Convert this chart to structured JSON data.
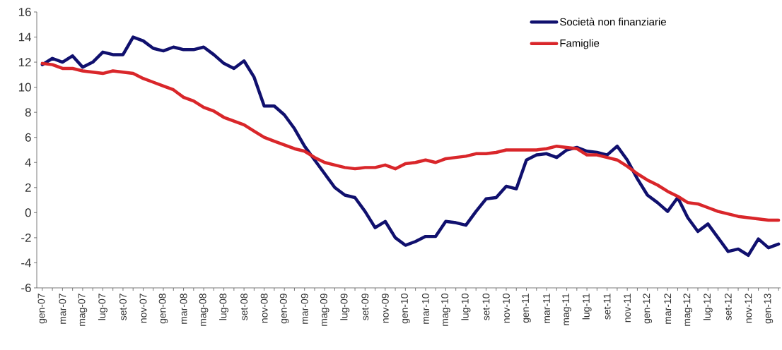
{
  "chart_data": {
    "type": "line",
    "categories": [
      "gen-07",
      null,
      "mar-07",
      null,
      "mag-07",
      null,
      "lug-07",
      null,
      "set-07",
      null,
      "nov-07",
      null,
      "gen-08",
      null,
      "mar-08",
      null,
      "mag-08",
      null,
      "lug-08",
      null,
      "set-08",
      null,
      "nov-08",
      null,
      "gen-09",
      null,
      "mar-09",
      null,
      "mag-09",
      null,
      "lug-09",
      null,
      "set-09",
      null,
      "nov-09",
      null,
      "gen-10",
      null,
      "mar-10",
      null,
      "mag-10",
      null,
      "lug-10",
      null,
      "set-10",
      null,
      "nov-10",
      null,
      "gen-11",
      null,
      "mar-11",
      null,
      "mag-11",
      null,
      "lug-11",
      null,
      "set-11",
      null,
      "nov-11",
      null,
      "gen-12",
      null,
      "mar-12",
      null,
      "mag-12",
      null,
      "lug-12",
      null,
      "set-12",
      null,
      "nov-12",
      null,
      "gen-13",
      null
    ],
    "series": [
      {
        "name": "Società non finanziarie",
        "color": "#10106e",
        "values": [
          11.8,
          12.3,
          12.0,
          12.5,
          11.6,
          12.0,
          12.8,
          12.6,
          12.6,
          14.0,
          13.7,
          13.1,
          12.9,
          13.2,
          13.0,
          13.0,
          13.2,
          12.6,
          11.9,
          11.5,
          12.1,
          10.8,
          8.5,
          8.5,
          7.8,
          6.7,
          5.3,
          4.2,
          3.1,
          2.0,
          1.4,
          1.2,
          0.1,
          -1.2,
          -0.7,
          -2.0,
          -2.6,
          -2.3,
          -1.9,
          -1.9,
          -0.7,
          -0.8,
          -1.0,
          0.1,
          1.1,
          1.2,
          2.1,
          1.9,
          4.2,
          4.6,
          4.7,
          4.4,
          5.0,
          5.2,
          4.9,
          4.8,
          4.6,
          5.3,
          4.2,
          2.7,
          1.4,
          0.8,
          0.1,
          1.2,
          -0.4,
          -1.5,
          -0.9,
          -2.0,
          -3.1,
          -2.9,
          -3.4,
          -2.1,
          -2.8,
          -2.5
        ]
      },
      {
        "name": "Famiglie",
        "color": "#d9262a",
        "values": [
          11.9,
          11.8,
          11.5,
          11.5,
          11.3,
          11.2,
          11.1,
          11.3,
          11.2,
          11.1,
          10.7,
          10.4,
          10.1,
          9.8,
          9.2,
          8.9,
          8.4,
          8.1,
          7.6,
          7.3,
          7.0,
          6.5,
          6.0,
          5.7,
          5.4,
          5.1,
          4.9,
          4.4,
          4.0,
          3.8,
          3.6,
          3.5,
          3.6,
          3.6,
          3.8,
          3.5,
          3.9,
          4.0,
          4.2,
          4.0,
          4.3,
          4.4,
          4.5,
          4.7,
          4.7,
          4.8,
          5.0,
          5.0,
          5.0,
          5.0,
          5.1,
          5.3,
          5.2,
          5.1,
          4.6,
          4.6,
          4.4,
          4.2,
          3.7,
          3.1,
          2.6,
          2.2,
          1.7,
          1.3,
          0.8,
          0.7,
          0.4,
          0.1,
          -0.1,
          -0.3,
          -0.4,
          -0.5,
          -0.6,
          -0.6
        ]
      }
    ],
    "ylim": [
      -6,
      16
    ],
    "yticks": [
      -6,
      -4,
      -2,
      0,
      2,
      4,
      6,
      8,
      10,
      12,
      14,
      16
    ],
    "legend": "top right",
    "line_style": "solid"
  }
}
